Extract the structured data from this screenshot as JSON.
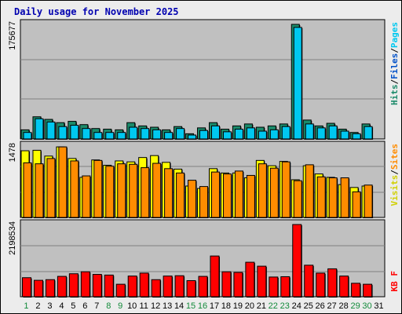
{
  "title": "Daily usage for November 2025",
  "legend": {
    "pages": "Pages",
    "files": "Files",
    "hits": "Hits",
    "sites": "Sites",
    "visits": "Visits",
    "kbytes": "KB F",
    "sep": "/"
  },
  "colors": {
    "hits": "#1a8a6a",
    "files": "#00c8f0",
    "pages": "#00c8f0",
    "visits": "#ffff00",
    "sites": "#ff8c00",
    "kbytes": "#ff0000",
    "weekend_day": "#128a3a",
    "weekday_day": "#000000",
    "title": "#0000b0"
  },
  "chart_data": [
    {
      "type": "bar",
      "name": "hits-files-pages",
      "categories": [
        "1",
        "2",
        "3",
        "4",
        "5",
        "6",
        "7",
        "8",
        "9",
        "10",
        "11",
        "12",
        "13",
        "14",
        "15",
        "16",
        "17",
        "18",
        "19",
        "20",
        "21",
        "22",
        "23",
        "24",
        "25",
        "26",
        "27",
        "28",
        "29",
        "30",
        "31"
      ],
      "max_label": "175677",
      "ylim": [
        0,
        175677
      ],
      "series": [
        {
          "name": "Hits",
          "values": [
            14000,
            34000,
            30000,
            25000,
            27000,
            22000,
            16000,
            15000,
            14000,
            25000,
            20000,
            18000,
            14000,
            19000,
            8000,
            17000,
            25000,
            15000,
            20000,
            23000,
            18000,
            20000,
            23000,
            175677,
            29000,
            20000,
            24000,
            15000,
            10000,
            23000,
            0
          ]
        },
        {
          "name": "Files",
          "values": [
            10000,
            31000,
            26000,
            19000,
            21000,
            16000,
            10000,
            10000,
            10000,
            18000,
            16000,
            14000,
            10000,
            16000,
            6000,
            13000,
            20000,
            11000,
            15000,
            17000,
            12000,
            14000,
            19000,
            171000,
            23000,
            17000,
            20000,
            12000,
            8000,
            19000,
            0
          ]
        }
      ]
    },
    {
      "type": "bar",
      "name": "visits-sites",
      "categories": [
        "1",
        "2",
        "3",
        "4",
        "5",
        "6",
        "7",
        "8",
        "9",
        "10",
        "11",
        "12",
        "13",
        "14",
        "15",
        "16",
        "17",
        "18",
        "19",
        "20",
        "21",
        "22",
        "23",
        "24",
        "25",
        "26",
        "27",
        "28",
        "29",
        "30",
        "31"
      ],
      "max_label": "1478",
      "ylim": [
        0,
        1478
      ],
      "series": [
        {
          "name": "Visits",
          "values": [
            1380,
            1390,
            1270,
            1460,
            1220,
            830,
            1190,
            1080,
            1170,
            1150,
            1240,
            1280,
            1140,
            1000,
            650,
            600,
            1010,
            920,
            920,
            820,
            1180,
            1070,
            1160,
            780,
            1070,
            900,
            830,
            680,
            620,
            650,
            0
          ]
        },
        {
          "name": "Sites",
          "values": [
            1130,
            1110,
            1220,
            1460,
            1170,
            860,
            1180,
            1060,
            1110,
            1100,
            1030,
            1120,
            1010,
            920,
            770,
            640,
            940,
            900,
            960,
            870,
            1110,
            1020,
            1150,
            760,
            1090,
            840,
            820,
            820,
            530,
            670,
            0
          ]
        }
      ]
    },
    {
      "type": "bar",
      "name": "kbytes",
      "categories": [
        "1",
        "2",
        "3",
        "4",
        "5",
        "6",
        "7",
        "8",
        "9",
        "10",
        "11",
        "12",
        "13",
        "14",
        "15",
        "16",
        "17",
        "18",
        "19",
        "20",
        "21",
        "22",
        "23",
        "24",
        "25",
        "26",
        "27",
        "28",
        "29",
        "30",
        "31"
      ],
      "max_label": "2198534",
      "ylim": [
        0,
        2198534
      ],
      "series": [
        {
          "name": "KB F",
          "values": [
            580000,
            500000,
            520000,
            620000,
            700000,
            760000,
            680000,
            660000,
            380000,
            630000,
            720000,
            520000,
            630000,
            640000,
            490000,
            620000,
            1240000,
            760000,
            740000,
            1050000,
            930000,
            600000,
            610000,
            2220000,
            960000,
            720000,
            850000,
            630000,
            410000,
            380000,
            0
          ]
        }
      ]
    }
  ]
}
